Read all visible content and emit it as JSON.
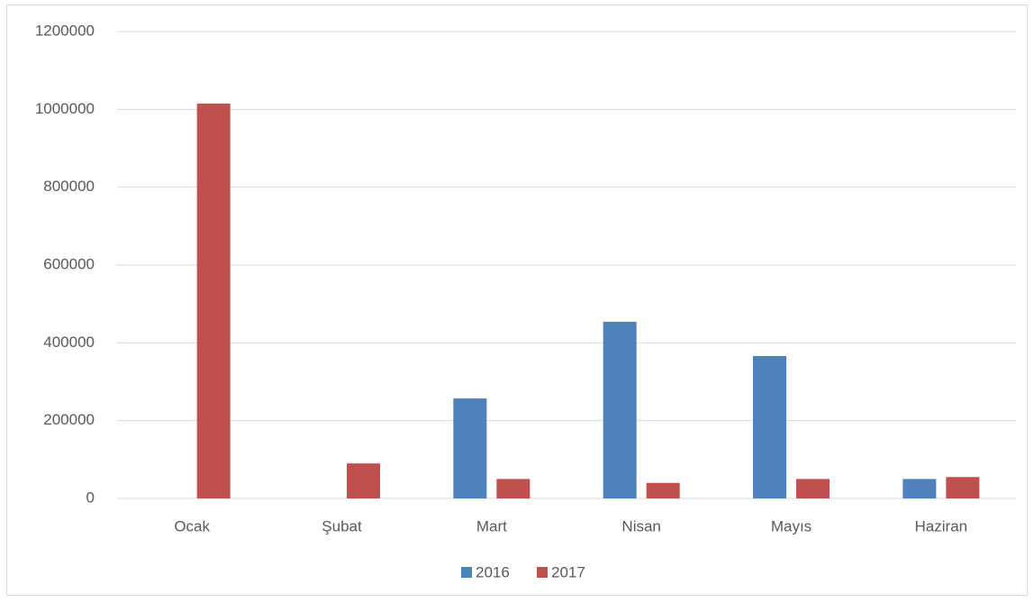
{
  "chart_data": {
    "type": "bar",
    "categories": [
      "Ocak",
      "Şubat",
      "Mart",
      "Nisan",
      "Mayıs",
      "Haziran"
    ],
    "series": [
      {
        "name": "2016",
        "color": "#4f81bd",
        "values": [
          null,
          null,
          257000,
          454000,
          366000,
          50000
        ]
      },
      {
        "name": "2017",
        "color": "#c0504d",
        "values": [
          1015000,
          90000,
          50000,
          40000,
          50000,
          55000
        ]
      }
    ],
    "ylim": [
      0,
      1200000
    ],
    "yticks": [
      0,
      200000,
      400000,
      600000,
      800000,
      1000000,
      1200000
    ],
    "grid": true,
    "legend": "bottom"
  }
}
